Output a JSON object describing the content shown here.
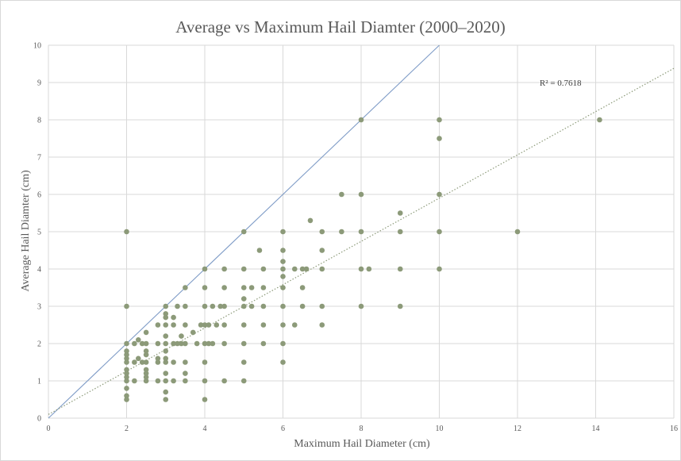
{
  "chart_data": {
    "type": "scatter",
    "title": "Average vs Maximum Hail Diamter (2000–2020)",
    "xlabel": "Maximum Hail Diameter (cm)",
    "ylabel": "Average Hail Diamter (cm)",
    "xlim": [
      0,
      16
    ],
    "ylim": [
      0,
      10
    ],
    "xticks": [
      0,
      2,
      4,
      6,
      8,
      10,
      12,
      14,
      16
    ],
    "yticks": [
      0,
      1,
      2,
      3,
      4,
      5,
      6,
      7,
      8,
      9,
      10
    ],
    "grid": true,
    "legend": "none",
    "colors": {
      "points": "#8c9a79",
      "reference_line": "#7f9cc7",
      "trendline": "#8c9a79",
      "grid": "#d9d9d9",
      "text": "#595959"
    },
    "annotations": [
      {
        "text": "R² = 0.7618",
        "x": 13.1,
        "y": 9.0
      }
    ],
    "reference_line": {
      "from": [
        0,
        0
      ],
      "to": [
        10,
        10
      ]
    },
    "trendline": {
      "type": "linear",
      "slope": 0.58,
      "intercept": 0.1,
      "style": "dotted",
      "r_squared": 0.7618
    },
    "points": [
      [
        2,
        0.5
      ],
      [
        2,
        0.6
      ],
      [
        2,
        0.8
      ],
      [
        2,
        1.0
      ],
      [
        2,
        1.1
      ],
      [
        2,
        1.2
      ],
      [
        2,
        1.3
      ],
      [
        2,
        1.5
      ],
      [
        2,
        1.6
      ],
      [
        2,
        1.7
      ],
      [
        2,
        1.8
      ],
      [
        2,
        2.0
      ],
      [
        2,
        3.0
      ],
      [
        2,
        5.0
      ],
      [
        2.2,
        1.0
      ],
      [
        2.2,
        1.5
      ],
      [
        2.2,
        2.0
      ],
      [
        2.3,
        1.6
      ],
      [
        2.3,
        2.1
      ],
      [
        2.4,
        1.5
      ],
      [
        2.4,
        2.0
      ],
      [
        2.5,
        1.0
      ],
      [
        2.5,
        1.1
      ],
      [
        2.5,
        1.2
      ],
      [
        2.5,
        1.3
      ],
      [
        2.5,
        1.5
      ],
      [
        2.5,
        1.7
      ],
      [
        2.5,
        1.8
      ],
      [
        2.5,
        2.0
      ],
      [
        2.5,
        2.3
      ],
      [
        2.8,
        1.0
      ],
      [
        2.8,
        1.5
      ],
      [
        2.8,
        1.6
      ],
      [
        2.8,
        2.0
      ],
      [
        2.8,
        2.5
      ],
      [
        3,
        0.5
      ],
      [
        3,
        0.7
      ],
      [
        3,
        1.0
      ],
      [
        3,
        1.2
      ],
      [
        3,
        1.5
      ],
      [
        3,
        1.6
      ],
      [
        3,
        1.8
      ],
      [
        3,
        2.0
      ],
      [
        3,
        2.2
      ],
      [
        3,
        2.5
      ],
      [
        3,
        2.7
      ],
      [
        3,
        2.8
      ],
      [
        3,
        3.0
      ],
      [
        3.2,
        1.0
      ],
      [
        3.2,
        1.5
      ],
      [
        3.2,
        2.0
      ],
      [
        3.2,
        2.5
      ],
      [
        3.2,
        2.7
      ],
      [
        3.3,
        2.0
      ],
      [
        3.3,
        3.0
      ],
      [
        3.4,
        2.0
      ],
      [
        3.4,
        2.2
      ],
      [
        3.5,
        1.0
      ],
      [
        3.5,
        1.2
      ],
      [
        3.5,
        1.5
      ],
      [
        3.5,
        2.0
      ],
      [
        3.5,
        2.5
      ],
      [
        3.5,
        3.0
      ],
      [
        3.5,
        3.5
      ],
      [
        3.7,
        2.3
      ],
      [
        3.8,
        2.0
      ],
      [
        3.9,
        2.5
      ],
      [
        4,
        0.5
      ],
      [
        4,
        1.0
      ],
      [
        4,
        1.5
      ],
      [
        4,
        2.0
      ],
      [
        4,
        2.5
      ],
      [
        4,
        3.0
      ],
      [
        4,
        3.5
      ],
      [
        4,
        4.0
      ],
      [
        4.1,
        2.0
      ],
      [
        4.1,
        2.5
      ],
      [
        4.2,
        2.0
      ],
      [
        4.2,
        3.0
      ],
      [
        4.3,
        2.5
      ],
      [
        4.4,
        3.0
      ],
      [
        4.5,
        1.0
      ],
      [
        4.5,
        2.0
      ],
      [
        4.5,
        2.5
      ],
      [
        4.5,
        3.0
      ],
      [
        4.5,
        3.5
      ],
      [
        4.5,
        4.0
      ],
      [
        5,
        1.0
      ],
      [
        5,
        1.5
      ],
      [
        5,
        2.0
      ],
      [
        5,
        2.5
      ],
      [
        5,
        3.0
      ],
      [
        5,
        3.2
      ],
      [
        5,
        3.5
      ],
      [
        5,
        4.0
      ],
      [
        5,
        5.0
      ],
      [
        5.2,
        3.0
      ],
      [
        5.2,
        3.5
      ],
      [
        5.4,
        4.5
      ],
      [
        5.5,
        2.0
      ],
      [
        5.5,
        2.5
      ],
      [
        5.5,
        3.0
      ],
      [
        5.5,
        3.5
      ],
      [
        5.5,
        4.0
      ],
      [
        6,
        1.5
      ],
      [
        6,
        2.0
      ],
      [
        6,
        2.5
      ],
      [
        6,
        3.0
      ],
      [
        6,
        3.5
      ],
      [
        6,
        3.8
      ],
      [
        6,
        4.0
      ],
      [
        6,
        4.2
      ],
      [
        6,
        4.5
      ],
      [
        6,
        5.0
      ],
      [
        6.3,
        2.5
      ],
      [
        6.3,
        4.0
      ],
      [
        6.5,
        3.0
      ],
      [
        6.5,
        3.5
      ],
      [
        6.5,
        4.0
      ],
      [
        6.6,
        4.0
      ],
      [
        6.7,
        5.3
      ],
      [
        7,
        2.5
      ],
      [
        7,
        3.0
      ],
      [
        7,
        4.0
      ],
      [
        7,
        4.5
      ],
      [
        7,
        5.0
      ],
      [
        7.5,
        5.0
      ],
      [
        7.5,
        6.0
      ],
      [
        8,
        3.0
      ],
      [
        8,
        4.0
      ],
      [
        8,
        5.0
      ],
      [
        8,
        6.0
      ],
      [
        8,
        8.0
      ],
      [
        8.2,
        4.0
      ],
      [
        9,
        3.0
      ],
      [
        9,
        4.0
      ],
      [
        9,
        5.0
      ],
      [
        9,
        5.5
      ],
      [
        10,
        4.0
      ],
      [
        10,
        5.0
      ],
      [
        10,
        6.0
      ],
      [
        10,
        7.5
      ],
      [
        10,
        8.0
      ],
      [
        12,
        5.0
      ],
      [
        14.1,
        8.0
      ]
    ]
  }
}
